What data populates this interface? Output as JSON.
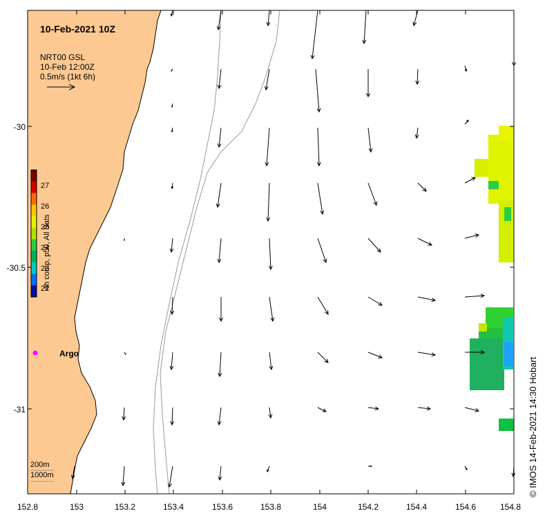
{
  "title": "10-Feb-2021 10Z",
  "overlay": {
    "product": "NRT00 GSL",
    "time": "10-Feb 12:00Z",
    "scale_label": "0.5m/s (1kt 6h)"
  },
  "axes": {
    "x_ticks": [
      "152.8",
      "153",
      "153.2",
      "153.4",
      "153.6",
      "153.8",
      "154",
      "154.2",
      "154.4",
      "154.6",
      "154.8"
    ],
    "y_ticks": [
      "-30",
      "-30.5",
      "-31"
    ]
  },
  "colorbar": {
    "title": "4h comp, p50, All Sats",
    "ticks": [
      "27",
      "26",
      "25",
      "24",
      "23",
      "22"
    ],
    "colors": [
      "#7a0000",
      "#d40000",
      "#ff6a00",
      "#ffc800",
      "#e8f000",
      "#b0e000",
      "#2ecc40",
      "#00b060",
      "#00c8c8",
      "#0070ff",
      "#0010a0"
    ]
  },
  "depth_legend": [
    "200m",
    "1000m"
  ],
  "marker": {
    "label": "Argo",
    "color": "#ff00ff"
  },
  "credit": "IMOS 14-Feb-2021 14:30 Hobart",
  "credit_symbol": "©",
  "colors": {
    "land": "#fdc992",
    "coast": "#000000",
    "isobath": "#999999",
    "arrow": "#000000"
  }
}
